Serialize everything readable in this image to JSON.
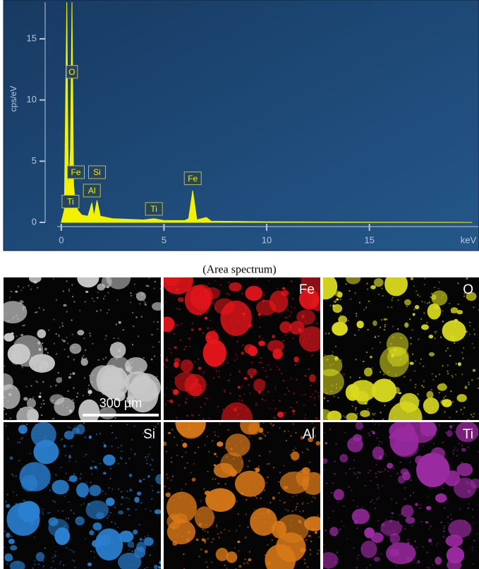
{
  "chart_data": {
    "type": "area",
    "ylabel": "cps/eV",
    "xlabel": "keV",
    "x": [
      0,
      0.15,
      0.27,
      0.35,
      0.45,
      0.52,
      0.6,
      0.7,
      0.71,
      0.8,
      0.9,
      1.0,
      1.3,
      1.49,
      1.6,
      1.74,
      1.9,
      2.5,
      4.0,
      4.51,
      5.0,
      6.0,
      6.2,
      6.4,
      6.6,
      7.06,
      7.3,
      10,
      15,
      20
    ],
    "values": [
      0,
      1,
      18,
      2,
      6,
      18,
      3,
      1.5,
      2,
      1,
      0.8,
      0.6,
      0.5,
      1.6,
      0.5,
      1.8,
      0.5,
      0.3,
      0.2,
      0.3,
      0.15,
      0.15,
      0.3,
      2.6,
      0.2,
      0.4,
      0.1,
      0.05,
      0.02,
      0
    ],
    "color": "#f2f200",
    "xlim": [
      -0.2,
      20.3
    ],
    "ylim": [
      0,
      18
    ],
    "xticks": [
      0,
      5,
      10,
      15
    ],
    "yticks": [
      0,
      5,
      10,
      15
    ],
    "annotations": [
      {
        "text": "O",
        "x": 0.52,
        "y": 12.3
      },
      {
        "text": "Fe",
        "x": 0.71,
        "y": 4.1
      },
      {
        "text": "Si",
        "x": 1.74,
        "y": 4.1
      },
      {
        "text": "Al",
        "x": 1.49,
        "y": 2.6
      },
      {
        "text": "Ti",
        "x": 0.45,
        "y": 1.7
      },
      {
        "text": "Ti",
        "x": 4.51,
        "y": 1.1
      },
      {
        "text": "Fe",
        "x": 6.4,
        "y": 3.6
      }
    ]
  },
  "caption": "(Area spectrum)",
  "maps": [
    {
      "scale_bar": "300 µm",
      "color": "#c8c8c8"
    },
    {
      "label": "Fe",
      "color": "#e8161c"
    },
    {
      "label": "O",
      "color": "#d8d820"
    },
    {
      "label": "Si",
      "color": "#2a7fd0"
    },
    {
      "label": "Al",
      "color": "#d87818"
    },
    {
      "label": "Ti",
      "color": "#9a2aa0"
    }
  ]
}
